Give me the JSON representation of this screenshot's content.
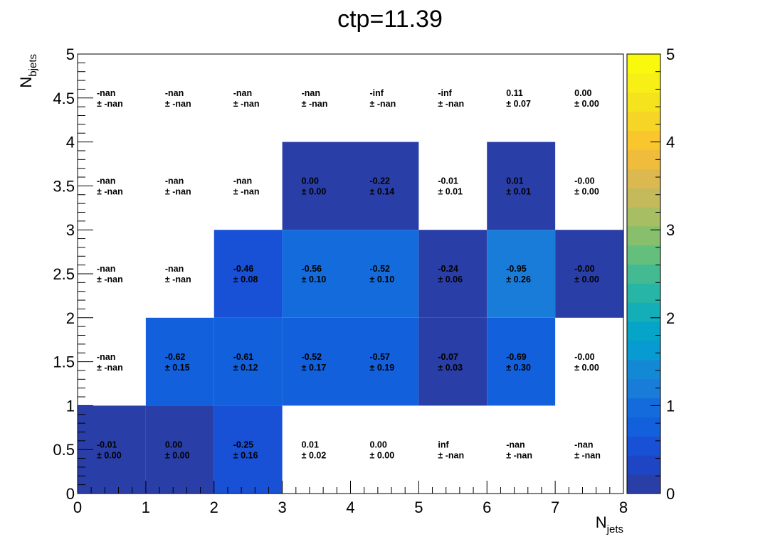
{
  "chart_data": {
    "type": "heatmap",
    "title": "ctp=11.39",
    "xlabel_main": "N",
    "xlabel_sub": "jets",
    "ylabel_main": "N",
    "ylabel_sub": "bjets",
    "xlim": [
      0,
      8
    ],
    "ylim": [
      0,
      5
    ],
    "zlim": [
      0,
      5
    ],
    "x_ticks": [
      "0",
      "1",
      "2",
      "3",
      "4",
      "5",
      "6",
      "7",
      "8"
    ],
    "y_ticks": [
      "0",
      "0.5",
      "1",
      "1.5",
      "2",
      "2.5",
      "3",
      "3.5",
      "4",
      "4.5",
      "5"
    ],
    "z_ticks": [
      "0",
      "1",
      "2",
      "3",
      "4",
      "5"
    ],
    "palette": [
      "#2a3ea7",
      "#1e45c3",
      "#1850d6",
      "#1260dc",
      "#146cdc",
      "#1a7cd9",
      "#1388d5",
      "#079bd2",
      "#06a5c8",
      "#14aeb8",
      "#27b6a5",
      "#43ba91",
      "#64bf7c",
      "#88bf6c",
      "#a8be63",
      "#c4ba5c",
      "#dbb950",
      "#efbd3b",
      "#fac62e",
      "#f7d526",
      "#f5e31d",
      "#f7ef16",
      "#f9f90e"
    ],
    "cells": [
      {
        "x": 0,
        "y": 0,
        "value": 0.06,
        "color": "#2a3ea7",
        "label1": "-0.01",
        "label2": "± 0.00"
      },
      {
        "x": 1,
        "y": 0,
        "value": 0.06,
        "color": "#2a3ea7",
        "label1": "0.00",
        "label2": "± 0.00"
      },
      {
        "x": 2,
        "y": 0,
        "value": 0.35,
        "color": "#1850d6",
        "label1": "-0.25",
        "label2": "± 0.16"
      },
      {
        "x": 3,
        "y": 0,
        "value": null,
        "label1": "0.01",
        "label2": "± 0.02"
      },
      {
        "x": 4,
        "y": 0,
        "value": null,
        "label1": "0.00",
        "label2": "± 0.00"
      },
      {
        "x": 5,
        "y": 0,
        "value": null,
        "label1": "inf",
        "label2": "± -nan"
      },
      {
        "x": 6,
        "y": 0,
        "value": null,
        "label1": "-nan",
        "label2": "± -nan"
      },
      {
        "x": 7,
        "y": 0,
        "value": null,
        "label1": "-nan",
        "label2": "± -nan"
      },
      {
        "x": 0,
        "y": 1,
        "value": null,
        "label1": "-nan",
        "label2": "± -nan"
      },
      {
        "x": 1,
        "y": 1,
        "value": 0.5,
        "color": "#1260dc",
        "label1": "-0.62",
        "label2": "± 0.15"
      },
      {
        "x": 2,
        "y": 1,
        "value": 0.5,
        "color": "#1260dc",
        "label1": "-0.61",
        "label2": "± 0.12"
      },
      {
        "x": 3,
        "y": 1,
        "value": 0.5,
        "color": "#1260dc",
        "label1": "-0.52",
        "label2": "± 0.17"
      },
      {
        "x": 4,
        "y": 1,
        "value": 0.5,
        "color": "#1260dc",
        "label1": "-0.57",
        "label2": "± 0.19"
      },
      {
        "x": 5,
        "y": 1,
        "value": 0.06,
        "color": "#2a3ea7",
        "label1": "-0.07",
        "label2": "± 0.03"
      },
      {
        "x": 6,
        "y": 1,
        "value": 0.5,
        "color": "#1260dc",
        "label1": "-0.69",
        "label2": "± 0.30"
      },
      {
        "x": 7,
        "y": 1,
        "value": null,
        "label1": "-0.00",
        "label2": "± 0.00"
      },
      {
        "x": 0,
        "y": 2,
        "value": null,
        "label1": "-nan",
        "label2": "± -nan"
      },
      {
        "x": 1,
        "y": 2,
        "value": null,
        "label1": "-nan",
        "label2": "± -nan"
      },
      {
        "x": 2,
        "y": 2,
        "value": 0.35,
        "color": "#1850d6",
        "label1": "-0.46",
        "label2": "± 0.08"
      },
      {
        "x": 3,
        "y": 2,
        "value": 0.6,
        "color": "#146cdc",
        "label1": "-0.56",
        "label2": "± 0.10"
      },
      {
        "x": 4,
        "y": 2,
        "value": 0.6,
        "color": "#146cdc",
        "label1": "-0.52",
        "label2": "± 0.10"
      },
      {
        "x": 5,
        "y": 2,
        "value": 0.06,
        "color": "#2a3ea7",
        "label1": "-0.24",
        "label2": "± 0.06"
      },
      {
        "x": 6,
        "y": 2,
        "value": 0.8,
        "color": "#1a7cd9",
        "label1": "-0.95",
        "label2": "± 0.26"
      },
      {
        "x": 7,
        "y": 2,
        "value": 0.06,
        "color": "#2a3ea7",
        "label1": "-0.00",
        "label2": "± 0.00"
      },
      {
        "x": 0,
        "y": 3,
        "value": null,
        "label1": "-nan",
        "label2": "± -nan"
      },
      {
        "x": 1,
        "y": 3,
        "value": null,
        "label1": "-nan",
        "label2": "± -nan"
      },
      {
        "x": 2,
        "y": 3,
        "value": null,
        "label1": "-nan",
        "label2": "± -nan"
      },
      {
        "x": 3,
        "y": 3,
        "value": 0.06,
        "color": "#2a3ea7",
        "label1": "0.00",
        "label2": "± 0.00"
      },
      {
        "x": 4,
        "y": 3,
        "value": 0.06,
        "color": "#2a3ea7",
        "label1": "-0.22",
        "label2": "± 0.14"
      },
      {
        "x": 5,
        "y": 3,
        "value": null,
        "label1": "-0.01",
        "label2": "± 0.01"
      },
      {
        "x": 6,
        "y": 3,
        "value": 0.06,
        "color": "#2a3ea7",
        "label1": "0.01",
        "label2": "± 0.01"
      },
      {
        "x": 7,
        "y": 3,
        "value": null,
        "label1": "-0.00",
        "label2": "± 0.00"
      },
      {
        "x": 0,
        "y": 4,
        "value": null,
        "label1": "-nan",
        "label2": "± -nan"
      },
      {
        "x": 1,
        "y": 4,
        "value": null,
        "label1": "-nan",
        "label2": "± -nan"
      },
      {
        "x": 2,
        "y": 4,
        "value": null,
        "label1": "-nan",
        "label2": "± -nan"
      },
      {
        "x": 3,
        "y": 4,
        "value": null,
        "label1": "-nan",
        "label2": "± -nan"
      },
      {
        "x": 4,
        "y": 4,
        "value": null,
        "label1": "-inf",
        "label2": "± -nan"
      },
      {
        "x": 5,
        "y": 4,
        "value": null,
        "label1": "-inf",
        "label2": "± -nan"
      },
      {
        "x": 6,
        "y": 4,
        "value": null,
        "label1": "0.11",
        "label2": "± 0.07"
      },
      {
        "x": 7,
        "y": 4,
        "value": null,
        "label1": "0.00",
        "label2": "± 0.00"
      }
    ]
  }
}
